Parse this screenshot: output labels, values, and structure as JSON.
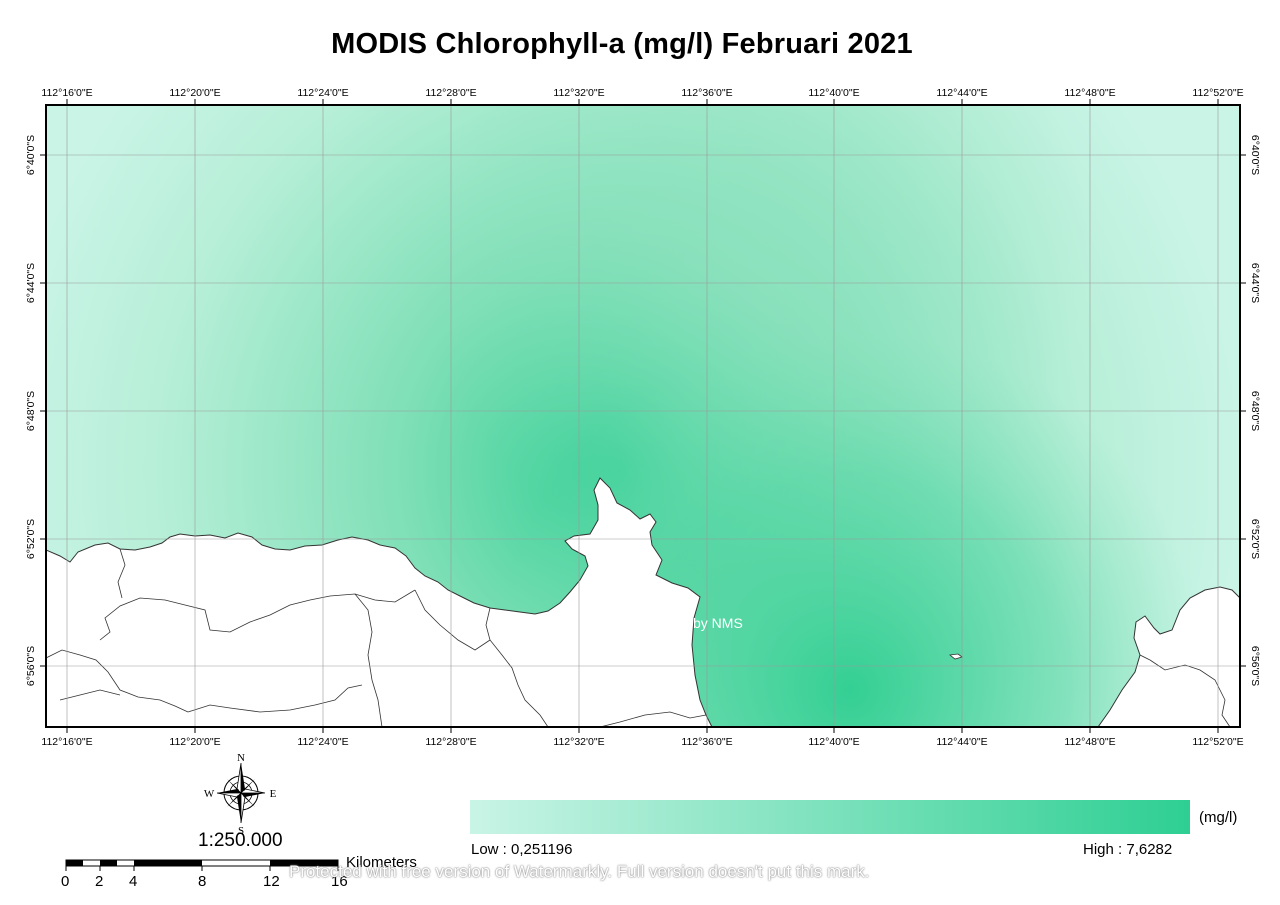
{
  "title": "MODIS Chlorophyll-a (mg/l) Februari 2021",
  "longitude_labels": [
    "112°16'0\"E",
    "112°20'0\"E",
    "112°24'0\"E",
    "112°28'0\"E",
    "112°32'0\"E",
    "112°36'0\"E",
    "112°40'0\"E",
    "112°44'0\"E",
    "112°48'0\"E",
    "112°52'0\"E"
  ],
  "latitude_labels": [
    "6°40'0\"S",
    "6°44'0\"S",
    "6°48'0\"S",
    "6°52'0\"S",
    "6°56'0\"S"
  ],
  "legend": {
    "unit": "(mg/l)",
    "low_label": "Low : 0,251196",
    "high_label": "High : 7,6282",
    "low_color": "#c9f4e6",
    "high_color": "#2ecf93"
  },
  "scale_text": "1:250.000",
  "scalebar": {
    "unit_label": "Kilometers",
    "ticks": [
      "0",
      "2",
      "4",
      "8",
      "12",
      "16"
    ]
  },
  "north_arrow": {
    "icon": "compass-rose-icon",
    "n": "N",
    "s": "S",
    "e": "E",
    "w": "W"
  },
  "map_credit": "by NMS",
  "watermark": "Protected with free version of Watermarkly. Full version doesn't put this mark.",
  "colors": {
    "land": "#ffffff",
    "boundary": "#333333",
    "grid": "#999999"
  }
}
